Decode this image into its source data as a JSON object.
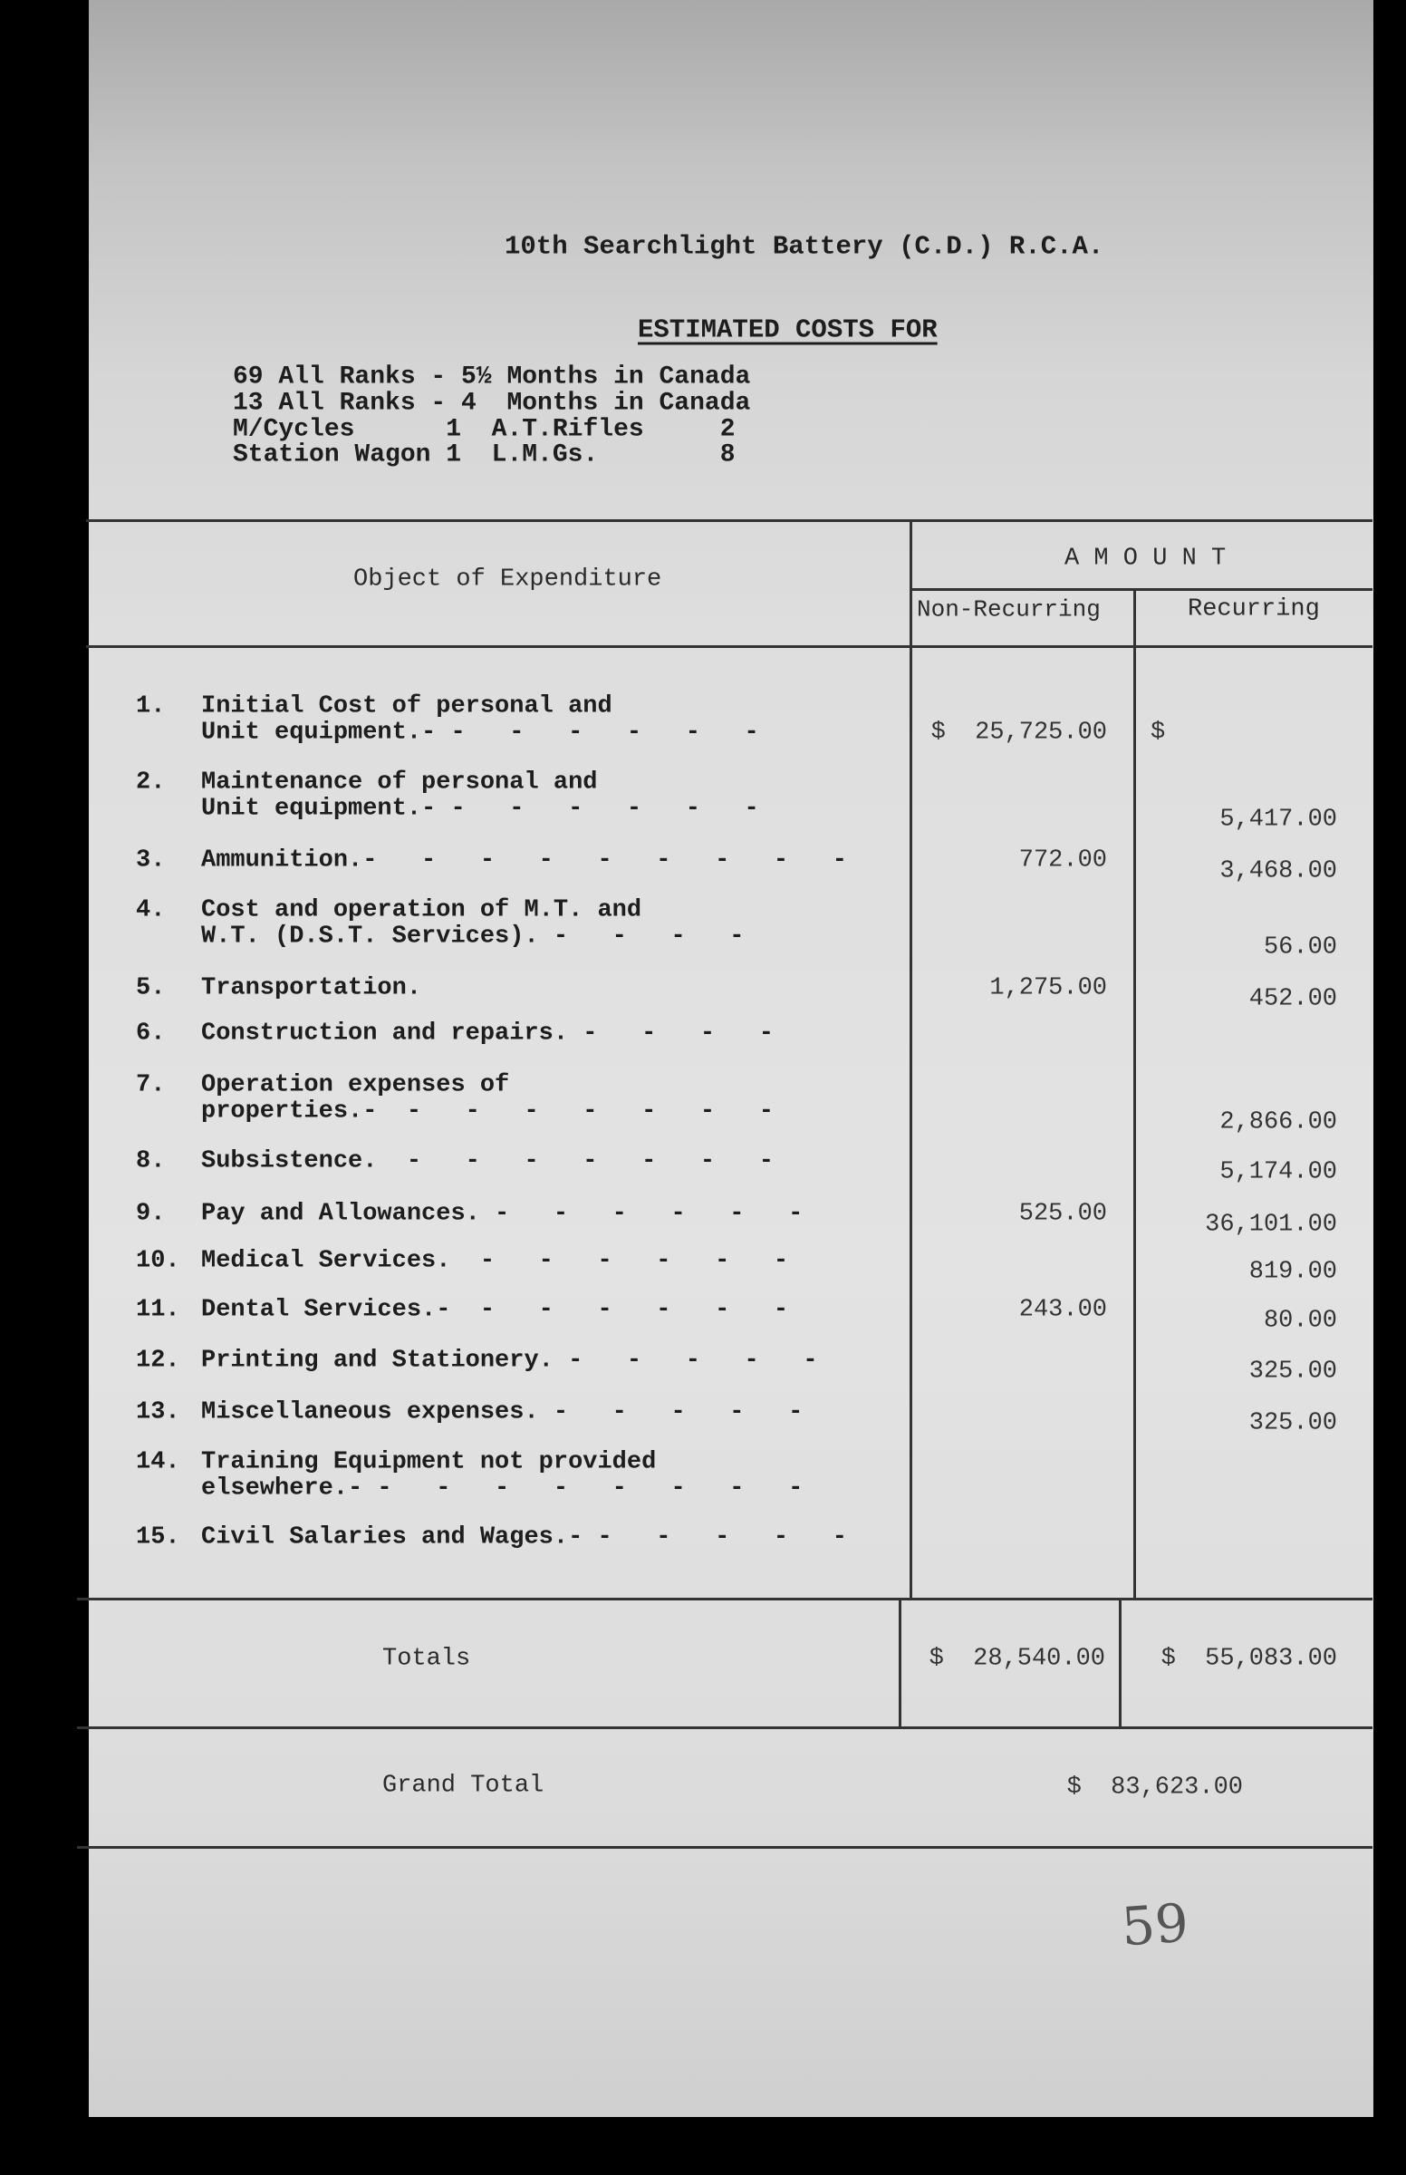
{
  "header": {
    "title": "10th Searchlight Battery (C.D.) R.C.A.",
    "subtitle": "ESTIMATED COSTS FOR",
    "details": [
      "69 All Ranks - 5½ Months in Canada",
      "13 All Ranks - 4  Months in Canada",
      "M/Cycles      1  A.T.Rifles     2",
      "Station Wagon 1  L.M.Gs.        8"
    ]
  },
  "table": {
    "col_object": "Object of Expenditure",
    "col_amount": "A M O U N T",
    "col_nonrecurring": "Non-Recurring",
    "col_recurring": "Recurring",
    "rows": [
      {
        "no": "1.",
        "lines": [
          "Initial Cost of personal and",
          "Unit equipment.-"
        ],
        "leader": " -   -   -   -   -   -",
        "nonrec": "$  25,725.00",
        "rec": "$"
      },
      {
        "no": "2.",
        "lines": [
          "Maintenance of personal and",
          "Unit equipment.-"
        ],
        "leader": " -   -   -   -   -   -",
        "nonrec": "",
        "rec": "5,417.00"
      },
      {
        "no": "3.",
        "lines": [
          "Ammunition.-"
        ],
        "leader": "   -   -   -   -   -   -   -   -",
        "nonrec": "772.00",
        "rec": "3,468.00"
      },
      {
        "no": "4.",
        "lines": [
          "Cost and operation of M.T. and",
          "W.T. (D.S.T. Services)."
        ],
        "leader": " -   -   -   -",
        "nonrec": "",
        "rec": "56.00"
      },
      {
        "no": "5.",
        "lines": [
          "Transportation."
        ],
        "leader": "",
        "nonrec": "1,275.00",
        "rec": "452.00"
      },
      {
        "no": "6.",
        "lines": [
          "Construction and repairs."
        ],
        "leader": " -   -   -   -",
        "nonrec": "",
        "rec": ""
      },
      {
        "no": "7.",
        "lines": [
          "Operation expenses of",
          "properties.-"
        ],
        "leader": "  -   -   -   -   -   -   -",
        "nonrec": "",
        "rec": "2,866.00"
      },
      {
        "no": "8.",
        "lines": [
          "Subsistence."
        ],
        "leader": "  -   -   -   -   -   -   -",
        "nonrec": "",
        "rec": "5,174.00"
      },
      {
        "no": "9.",
        "lines": [
          "Pay and Allowances."
        ],
        "leader": " -   -   -   -   -   -",
        "nonrec": "525.00",
        "rec": "36,101.00"
      },
      {
        "no": "10.",
        "lines": [
          "Medical Services."
        ],
        "leader": "  -   -   -   -   -   -",
        "nonrec": "",
        "rec": "819.00"
      },
      {
        "no": "11.",
        "lines": [
          "Dental Services.-"
        ],
        "leader": "  -   -   -   -   -   -",
        "nonrec": "243.00",
        "rec": "80.00"
      },
      {
        "no": "12.",
        "lines": [
          "Printing and Stationery."
        ],
        "leader": " -   -   -   -   -",
        "nonrec": "",
        "rec": "325.00"
      },
      {
        "no": "13.",
        "lines": [
          "Miscellaneous expenses."
        ],
        "leader": " -   -   -   -   -",
        "nonrec": "",
        "rec": "325.00"
      },
      {
        "no": "14.",
        "lines": [
          "Training Equipment not provided",
          "elsewhere.-"
        ],
        "leader": " -   -   -   -   -   -   -   -",
        "nonrec": "",
        "rec": ""
      },
      {
        "no": "15.",
        "lines": [
          "Civil Salaries and Wages.-"
        ],
        "leader": " -   -   -   -   -",
        "nonrec": "",
        "rec": ""
      }
    ],
    "totals_label": "Totals",
    "totals_nonrec": "$  28,540.00",
    "totals_rec": "$  55,083.00",
    "grand_total_label": "Grand Total",
    "grand_total_value": "$  83,623.00"
  },
  "handwritten_note": "59"
}
